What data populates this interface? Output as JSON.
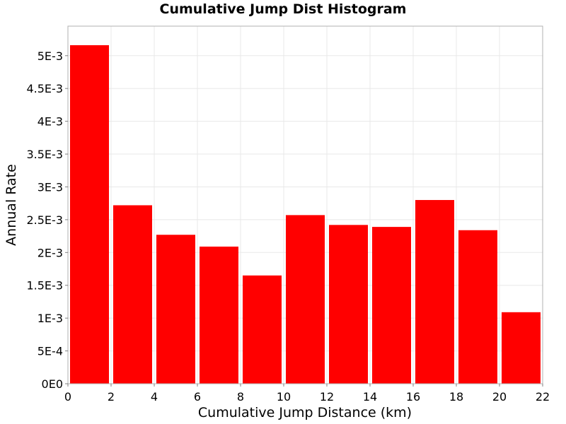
{
  "chart_data": {
    "type": "bar",
    "title": "Cumulative Jump Dist Histogram",
    "xlabel": "Cumulative Jump Distance (km)",
    "ylabel": "Annual Rate",
    "xlim": [
      0,
      22
    ],
    "ylim": [
      0,
      0.00545
    ],
    "bin_width": 2,
    "bins": [
      {
        "x0": 0,
        "x1": 2,
        "value": 0.00516
      },
      {
        "x0": 2,
        "x1": 4,
        "value": 0.00272
      },
      {
        "x0": 4,
        "x1": 6,
        "value": 0.00227
      },
      {
        "x0": 6,
        "x1": 8,
        "value": 0.00209
      },
      {
        "x0": 8,
        "x1": 10,
        "value": 0.00165
      },
      {
        "x0": 10,
        "x1": 12,
        "value": 0.00257
      },
      {
        "x0": 12,
        "x1": 14,
        "value": 0.00242
      },
      {
        "x0": 14,
        "x1": 16,
        "value": 0.00239
      },
      {
        "x0": 16,
        "x1": 18,
        "value": 0.0028
      },
      {
        "x0": 18,
        "x1": 20,
        "value": 0.00234
      },
      {
        "x0": 20,
        "x1": 22,
        "value": 0.00109
      }
    ],
    "x_ticks": [
      {
        "value": 0,
        "label": "0"
      },
      {
        "value": 2,
        "label": "2"
      },
      {
        "value": 4,
        "label": "4"
      },
      {
        "value": 6,
        "label": "6"
      },
      {
        "value": 8,
        "label": "8"
      },
      {
        "value": 10,
        "label": "10"
      },
      {
        "value": 12,
        "label": "12"
      },
      {
        "value": 14,
        "label": "14"
      },
      {
        "value": 16,
        "label": "16"
      },
      {
        "value": 18,
        "label": "18"
      },
      {
        "value": 20,
        "label": "20"
      },
      {
        "value": 22,
        "label": "22"
      }
    ],
    "y_ticks": [
      {
        "value": 0,
        "label": "0E0"
      },
      {
        "value": 0.0005,
        "label": "5E-4"
      },
      {
        "value": 0.001,
        "label": "1E-3"
      },
      {
        "value": 0.0015,
        "label": "1.5E-3"
      },
      {
        "value": 0.002,
        "label": "2E-3"
      },
      {
        "value": 0.0025,
        "label": "2.5E-3"
      },
      {
        "value": 0.003,
        "label": "3E-3"
      },
      {
        "value": 0.0035,
        "label": "3.5E-3"
      },
      {
        "value": 0.004,
        "label": "4E-3"
      },
      {
        "value": 0.0045,
        "label": "4.5E-3"
      },
      {
        "value": 0.005,
        "label": "5E-3"
      }
    ],
    "grid": true,
    "bar_color": "#ff0000",
    "gridline_color": "#e8e8e8",
    "frame_color": "#b0b0b0"
  }
}
